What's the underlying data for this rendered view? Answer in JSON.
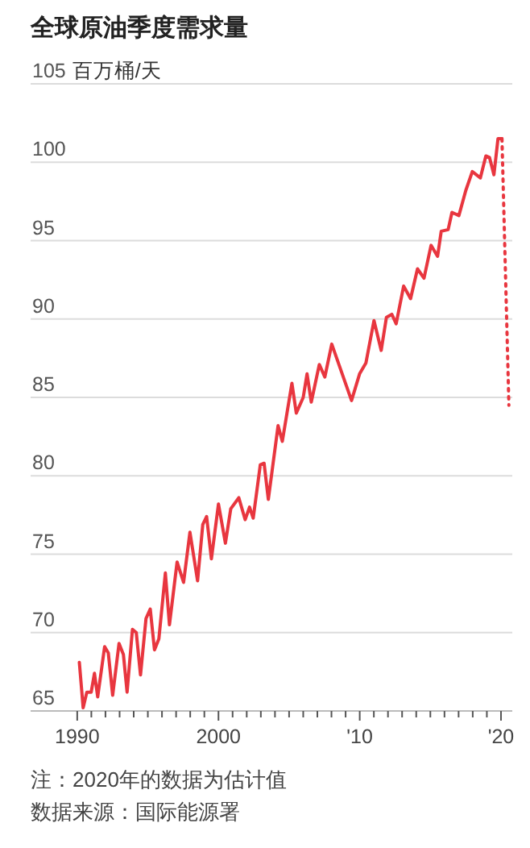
{
  "chart_data": {
    "type": "line",
    "title": "全球原油季度需求量",
    "ylabel": "百万桶/天",
    "annotations": [
      "注：2020年的数据为估计值",
      "数据来源：国际能源署"
    ],
    "xlim": [
      1986.7,
      2020.8
    ],
    "ylim": [
      65,
      105
    ],
    "yticks": [
      65,
      70,
      75,
      80,
      85,
      90,
      95,
      100,
      105
    ],
    "xticks": [
      {
        "value": 1990,
        "label": "1990"
      },
      {
        "value": 1991,
        "label": null
      },
      {
        "value": 1992,
        "label": null
      },
      {
        "value": 1993,
        "label": null
      },
      {
        "value": 1994,
        "label": null
      },
      {
        "value": 1995,
        "label": null
      },
      {
        "value": 1996,
        "label": null
      },
      {
        "value": 1997,
        "label": null
      },
      {
        "value": 1998,
        "label": null
      },
      {
        "value": 1999,
        "label": null
      },
      {
        "value": 2000,
        "label": "2000"
      },
      {
        "value": 2001,
        "label": null
      },
      {
        "value": 2002,
        "label": null
      },
      {
        "value": 2003,
        "label": null
      },
      {
        "value": 2004,
        "label": null
      },
      {
        "value": 2005,
        "label": null
      },
      {
        "value": 2006,
        "label": null
      },
      {
        "value": 2007,
        "label": null
      },
      {
        "value": 2008,
        "label": null
      },
      {
        "value": 2009,
        "label": null
      },
      {
        "value": 2010,
        "label": "'10"
      },
      {
        "value": 2011,
        "label": null
      },
      {
        "value": 2012,
        "label": null
      },
      {
        "value": 2013,
        "label": null
      },
      {
        "value": 2014,
        "label": null
      },
      {
        "value": 2015,
        "label": null
      },
      {
        "value": 2016,
        "label": null
      },
      {
        "value": 2017,
        "label": null
      },
      {
        "value": 2018,
        "label": null
      },
      {
        "value": 2019,
        "label": null
      },
      {
        "value": 2020,
        "label": "'20"
      }
    ],
    "grid": "y",
    "marker": "none",
    "series": [
      {
        "color": "#e8363f",
        "line_style": "solid",
        "x": [
          1990.15,
          1990.42,
          1990.68,
          1990.99,
          1991.22,
          1991.45,
          1991.94,
          1992.2,
          1992.51,
          1992.96,
          1993.27,
          1993.53,
          1993.91,
          1994.18,
          1994.48,
          1994.87,
          1995.17,
          1995.47,
          1995.78,
          1996.24,
          1996.53,
          1997.07,
          1997.53,
          1997.98,
          1998.52,
          1998.89,
          1999.16,
          1999.5,
          2000.0,
          2000.49,
          2000.87,
          2001.44,
          2001.89,
          2002.2,
          2002.46,
          2002.96,
          2003.23,
          2003.53,
          2004.22,
          2004.52,
          2005.2,
          2005.51,
          2006.0,
          2006.27,
          2006.57,
          2007.14,
          2007.53,
          2008.02,
          2009.42,
          2009.99,
          2010.44,
          2011.01,
          2011.52,
          2011.89,
          2012.27,
          2012.58,
          2013.11,
          2013.6,
          2014.09,
          2014.55,
          2015.05,
          2015.51,
          2015.77,
          2016.26,
          2016.53,
          2017.02,
          2017.51,
          2017.97,
          2018.54,
          2018.93,
          2019.19,
          2019.5,
          2019.79,
          2020.07
        ],
        "values": [
          68.1,
          65.2,
          66.2,
          66.2,
          67.4,
          65.9,
          69.1,
          68.7,
          66.0,
          69.3,
          68.6,
          66.2,
          70.2,
          70.0,
          67.3,
          70.9,
          71.5,
          68.9,
          69.6,
          73.8,
          70.5,
          74.5,
          73.2,
          76.4,
          73.3,
          76.9,
          77.4,
          74.7,
          78.2,
          75.7,
          77.9,
          78.6,
          77.2,
          78.0,
          77.3,
          80.7,
          80.8,
          78.5,
          83.2,
          82.2,
          85.9,
          84.0,
          85.0,
          86.5,
          84.7,
          87.1,
          86.3,
          88.4,
          84.8,
          86.5,
          87.2,
          89.9,
          88.0,
          90.1,
          90.3,
          89.7,
          92.1,
          91.3,
          93.2,
          92.6,
          94.7,
          94.0,
          95.6,
          95.7,
          96.8,
          96.6,
          98.2,
          99.4,
          99.0,
          100.4,
          100.3,
          99.2,
          101.5,
          101.5
        ]
      },
      {
        "color": "#e8363f",
        "line_style": "dotted",
        "x": [
          2020.07,
          2020.56
        ],
        "values": [
          101.5,
          84.5
        ]
      }
    ]
  }
}
